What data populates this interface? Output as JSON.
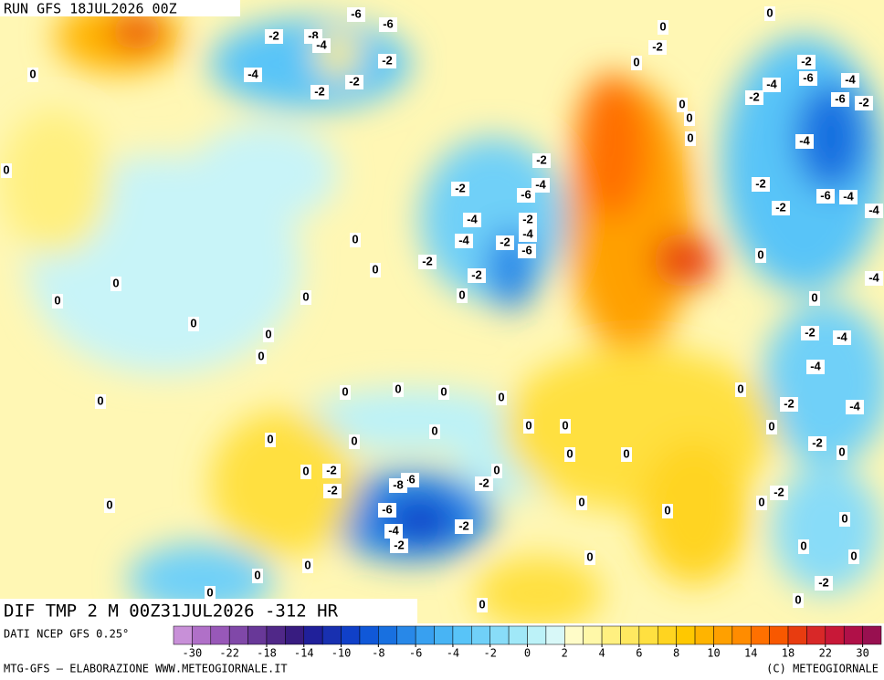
{
  "header": {
    "run": "RUN GFS 18JUL2026 00Z"
  },
  "map": {
    "field_title": "DIF TMP 2 M 00Z31JUL2026 -312 HR",
    "contour_labels": [
      -2,
      -8,
      -6,
      -6,
      -4,
      -4,
      -2,
      -2,
      -2,
      0,
      0,
      0,
      0,
      -2,
      0,
      -2,
      -4,
      -2,
      -4,
      -6,
      -6,
      -2,
      0,
      0,
      0,
      -4,
      -2,
      -6,
      -4,
      -2,
      -4,
      -2,
      -2,
      -4,
      -6,
      -2,
      -4,
      -4,
      -2,
      -6,
      -4,
      0,
      0,
      -2,
      -2,
      0,
      0,
      0,
      0,
      0,
      0,
      0,
      0,
      0,
      0,
      0,
      0,
      0,
      0,
      0,
      0,
      0,
      0,
      0,
      0,
      0,
      -4,
      -2,
      -4,
      -4,
      0,
      -2,
      -4,
      0,
      -2,
      0,
      -2,
      -6,
      -8,
      0,
      -2,
      0,
      -2,
      -6,
      0,
      0,
      0,
      -2,
      0,
      -4,
      -2,
      -2,
      0,
      0,
      0,
      0,
      0,
      -2,
      0,
      0,
      0,
      0
    ]
  },
  "legend": {
    "source": "DATI NCEP GFS 0.25°",
    "ticks": [
      -30,
      -22,
      -18,
      -14,
      -10,
      -8,
      -6,
      -4,
      -2,
      0,
      2,
      4,
      6,
      8,
      10,
      14,
      18,
      22,
      30
    ],
    "colors": [
      "#c890d8",
      "#b070c8",
      "#9858b8",
      "#8048a8",
      "#683898",
      "#502888",
      "#381c80",
      "#20209a",
      "#1830b0",
      "#1040c8",
      "#1058d8",
      "#1870e0",
      "#2888e8",
      "#38a0f0",
      "#48b4f4",
      "#58c4f8",
      "#70d0f8",
      "#88dcf8",
      "#a0e8f8",
      "#bcf2f8",
      "#d8f8f8",
      "#fffcc8",
      "#fff8a8",
      "#fff080",
      "#ffe860",
      "#ffe040",
      "#ffd420",
      "#ffc800",
      "#ffb400",
      "#ffa000",
      "#ff8c00",
      "#ff7000",
      "#f85800",
      "#e83c10",
      "#d82828",
      "#c81838",
      "#b01048",
      "#981050"
    ]
  },
  "footer": {
    "left": "MTG-GFS – ELABORAZIONE WWW.METEOGIORNALE.IT",
    "right": "(C) METEOGIORNALE"
  }
}
